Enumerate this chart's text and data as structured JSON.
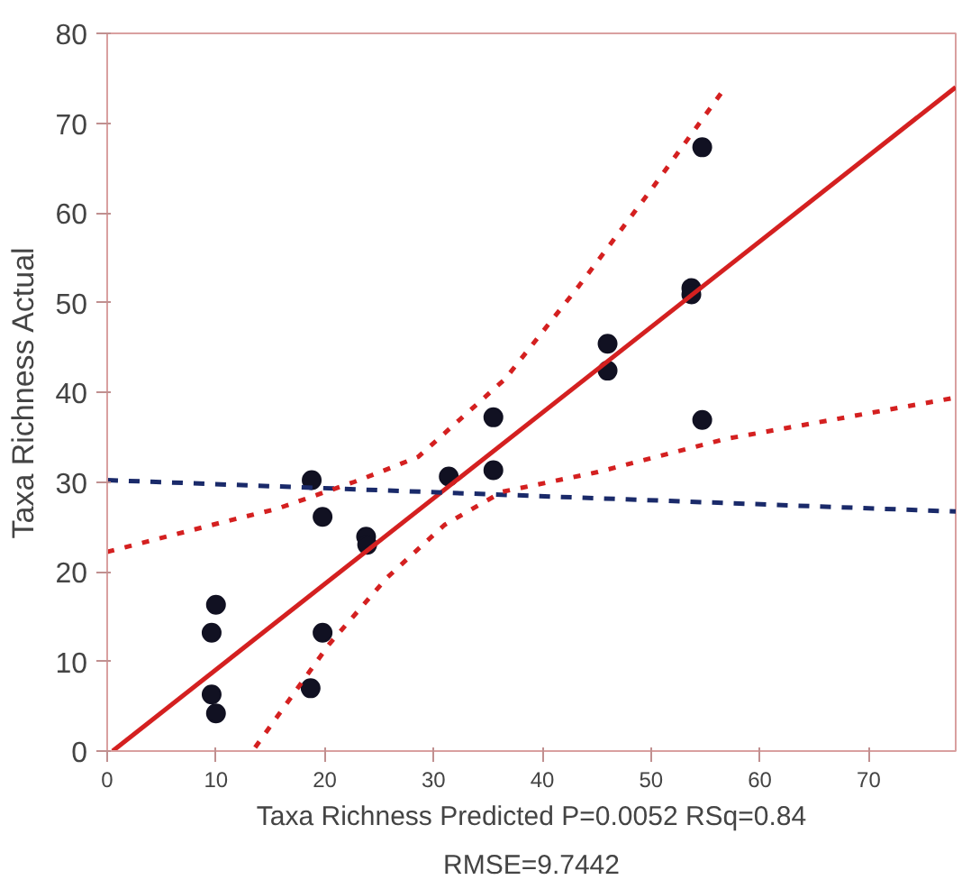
{
  "chart_data": {
    "type": "scatter",
    "xlabel": "Taxa Richness Predicted P=0.0052 RSq=0.84",
    "ylabel": "Taxa Richness Actual",
    "annotations": [
      "RMSE=9.7442"
    ],
    "xlim": [
      0,
      78
    ],
    "ylim": [
      0,
      80
    ],
    "xticks": [
      0,
      10,
      20,
      30,
      40,
      50,
      60,
      70
    ],
    "yticks": [
      0,
      10,
      20,
      30,
      40,
      50,
      60,
      70,
      80
    ],
    "grid": false,
    "series": [
      {
        "marker": "circle",
        "color": "#111122",
        "x": [
          10.0,
          9.6,
          9.6,
          10.0,
          18.8,
          19.8,
          19.8,
          18.7,
          23.8,
          23.9,
          31.4,
          35.5,
          35.5,
          46.0,
          46.0,
          53.7,
          53.7,
          54.7,
          54.7
        ],
        "values": [
          16.3,
          13.2,
          6.3,
          4.2,
          30.2,
          26.1,
          13.2,
          7.0,
          23.9,
          23.0,
          30.6,
          37.2,
          31.3,
          45.4,
          42.4,
          51.6,
          50.9,
          67.3,
          36.9
        ]
      },
      {
        "type": "line",
        "color": "#d42020",
        "line_style": "solid",
        "x": [
          0.5,
          78
        ],
        "values": [
          0,
          74
        ]
      },
      {
        "type": "line",
        "color": "#1a2a6a",
        "line_style": "dashed",
        "x": [
          0,
          78
        ],
        "values": [
          30.2,
          26.7
        ]
      },
      {
        "type": "line",
        "color": "#d42020",
        "line_style": "dotted",
        "x": [
          0,
          10.9,
          15.6,
          22.7,
          25.1,
          28.6,
          36.6,
          43.4,
          49.9,
          56.9
        ],
        "values": [
          22.2,
          25.6,
          27.0,
          30.0,
          31.1,
          32.8,
          41.5,
          51.9,
          62.4,
          74.1
        ]
      },
      {
        "type": "line",
        "color": "#d42020",
        "line_style": "dotted",
        "x": [
          13.6,
          20.4,
          25.7,
          31.0,
          36.3,
          45.1,
          56.9,
          78.0
        ],
        "values": [
          0.4,
          11.9,
          19.3,
          25.2,
          28.9,
          31.1,
          34.8,
          39.4
        ]
      }
    ]
  }
}
